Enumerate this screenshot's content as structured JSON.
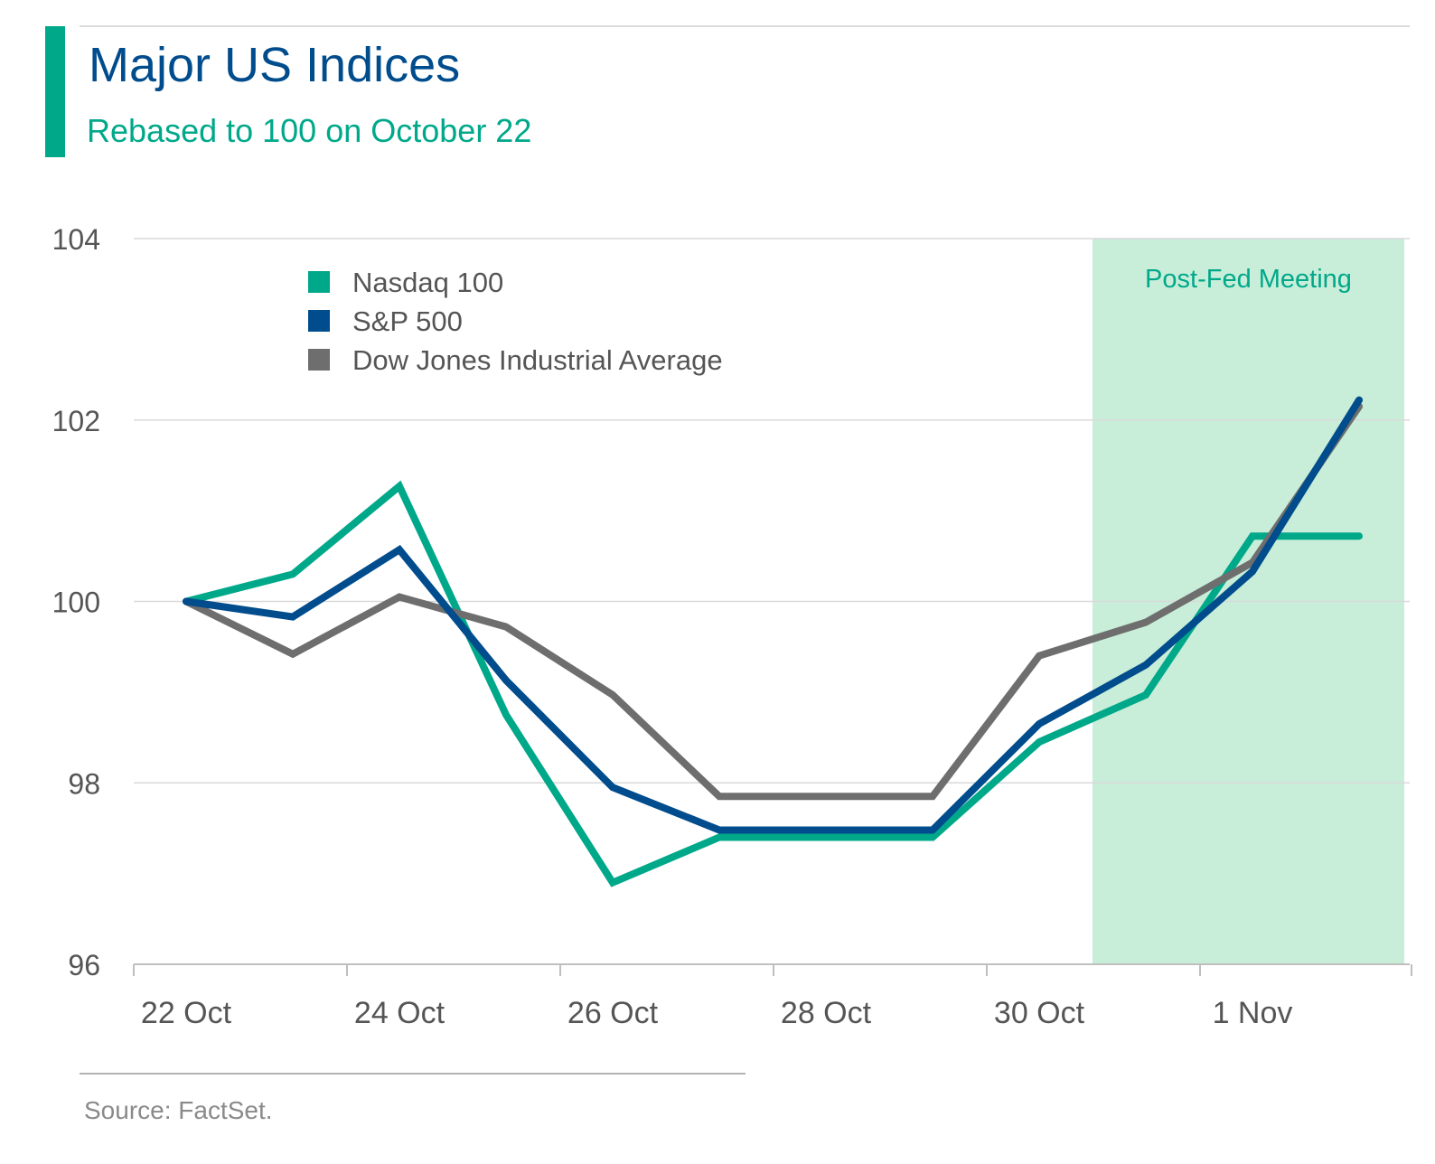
{
  "colors": {
    "accent": "#00a88a",
    "title": "#004c8c",
    "subtitle": "#00a88a",
    "axis_text": "#555555",
    "grid": "#d9d9d9",
    "shade": "#c8eed9",
    "source": "#8a8a8a",
    "nasdaq": "#00a88a",
    "sp500": "#004c8c",
    "dow": "#6e6e6e"
  },
  "chart_data": {
    "type": "line",
    "title": "Major US Indices",
    "subtitle": "Rebased to 100 on October 22",
    "ylim": [
      96,
      104
    ],
    "yticks": [
      96,
      98,
      100,
      102,
      104
    ],
    "xlabels": [
      "22 Oct",
      "24 Oct",
      "26 Oct",
      "28 Oct",
      "30 Oct",
      "1 Nov"
    ],
    "x": [
      "22 Oct",
      "23 Oct",
      "24 Oct",
      "25 Oct",
      "26 Oct",
      "27 Oct",
      "28 Oct",
      "29 Oct",
      "30 Oct",
      "31 Oct",
      "1 Nov",
      "2 Nov"
    ],
    "grid": true,
    "legend_position": "top-left",
    "series": [
      {
        "name": "Nasdaq 100",
        "color": "#00a88a",
        "values": [
          100.0,
          100.3,
          101.27,
          98.75,
          96.9,
          97.4,
          97.4,
          97.4,
          98.45,
          98.97,
          100.72,
          100.72
        ]
      },
      {
        "name": "S&P 500",
        "color": "#004c8c",
        "values": [
          100.0,
          99.83,
          100.57,
          99.13,
          97.95,
          97.48,
          97.48,
          97.48,
          98.65,
          99.3,
          100.33,
          102.22
        ]
      },
      {
        "name": "Dow Jones Industrial Average",
        "color": "#6e6e6e",
        "values": [
          100.0,
          99.42,
          100.05,
          99.72,
          98.97,
          97.85,
          97.85,
          97.85,
          99.4,
          99.77,
          100.43,
          102.15
        ]
      }
    ],
    "annotations": [
      {
        "text": "Post-Fed Meeting",
        "x_start": "31 Oct",
        "x_end": "2 Nov"
      }
    ]
  },
  "footer": {
    "source": "Source: FactSet."
  }
}
